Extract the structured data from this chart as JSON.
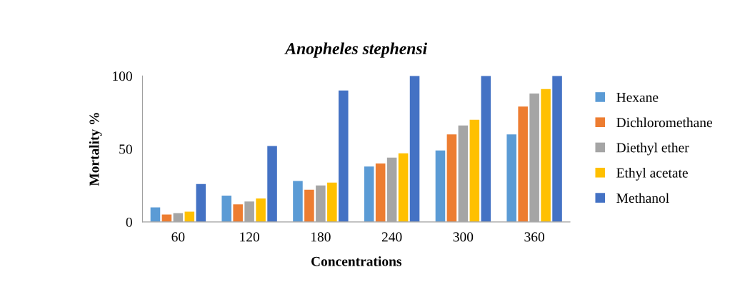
{
  "chart_data": {
    "type": "bar",
    "title": "Anopheles stephensi",
    "xlabel": "Concentrations",
    "ylabel": "Mortality %",
    "categories": [
      "60",
      "120",
      "180",
      "240",
      "300",
      "360"
    ],
    "series": [
      {
        "name": "Hexane",
        "color": "#5b9bd5",
        "values": [
          10,
          18,
          28,
          38,
          49,
          60
        ]
      },
      {
        "name": "Dichloromethane",
        "color": "#ed7d31",
        "values": [
          5,
          12,
          22,
          40,
          60,
          79
        ]
      },
      {
        "name": "Diethyl ether",
        "color": "#a5a5a5",
        "values": [
          6,
          14,
          25,
          44,
          66,
          88
        ]
      },
      {
        "name": "Ethyl acetate",
        "color": "#ffc000",
        "values": [
          7,
          16,
          27,
          47,
          70,
          91
        ]
      },
      {
        "name": "Methanol",
        "color": "#4472c4",
        "values": [
          26,
          52,
          90,
          100,
          100,
          100
        ]
      }
    ],
    "ylim": [
      0,
      100
    ],
    "yticks": [
      0,
      50,
      100
    ],
    "grid": false,
    "legend": "right"
  }
}
